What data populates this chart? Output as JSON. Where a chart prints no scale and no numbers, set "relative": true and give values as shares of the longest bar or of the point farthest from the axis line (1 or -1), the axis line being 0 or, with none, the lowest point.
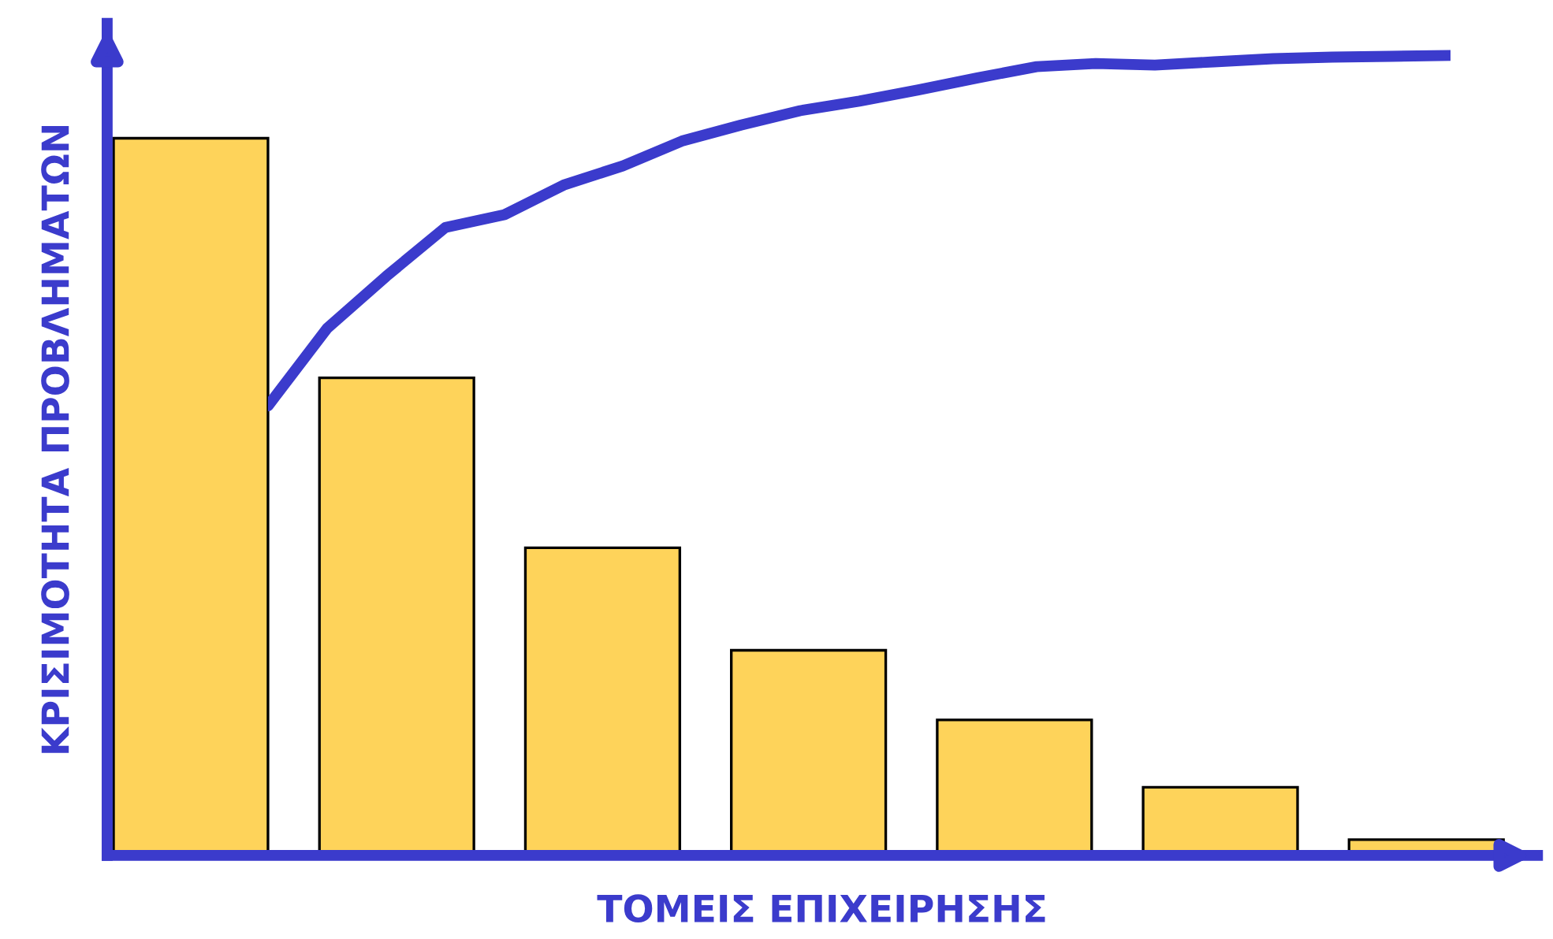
{
  "chart_data": [
    {
      "type": "bar",
      "relative": true,
      "xlabel": "ΤΟΜΕΙΣ ΕΠΙΧΕΙΡΗΣΗΣ",
      "ylabel": "ΚΡΙΣΙΜΟΤΗΤΑ ΠΡΟΒΛΗΜΑΤΩΝ",
      "categories": [
        null,
        null,
        null,
        null,
        null,
        null,
        null
      ],
      "series": [
        {
          "color": "#fed35a",
          "values": [
            1.0,
            0.666,
            0.429,
            0.286,
            0.189,
            0.095,
            0.022
          ]
        }
      ]
    },
    {
      "type": "line",
      "relative": true,
      "categories": [
        null,
        null,
        null,
        null,
        null,
        null,
        null,
        null,
        null,
        null,
        null,
        null,
        null,
        null,
        null,
        null,
        null,
        null,
        null,
        null,
        null
      ],
      "series": [
        {
          "color": "#3b3bcc",
          "values": [
            0.562,
            0.659,
            0.724,
            0.785,
            0.801,
            0.838,
            0.862,
            0.893,
            0.913,
            0.931,
            0.943,
            0.957,
            0.972,
            0.986,
            0.99,
            0.988,
            0.992,
            0.996,
            0.998,
            0.999,
            1.0
          ]
        }
      ]
    }
  ]
}
